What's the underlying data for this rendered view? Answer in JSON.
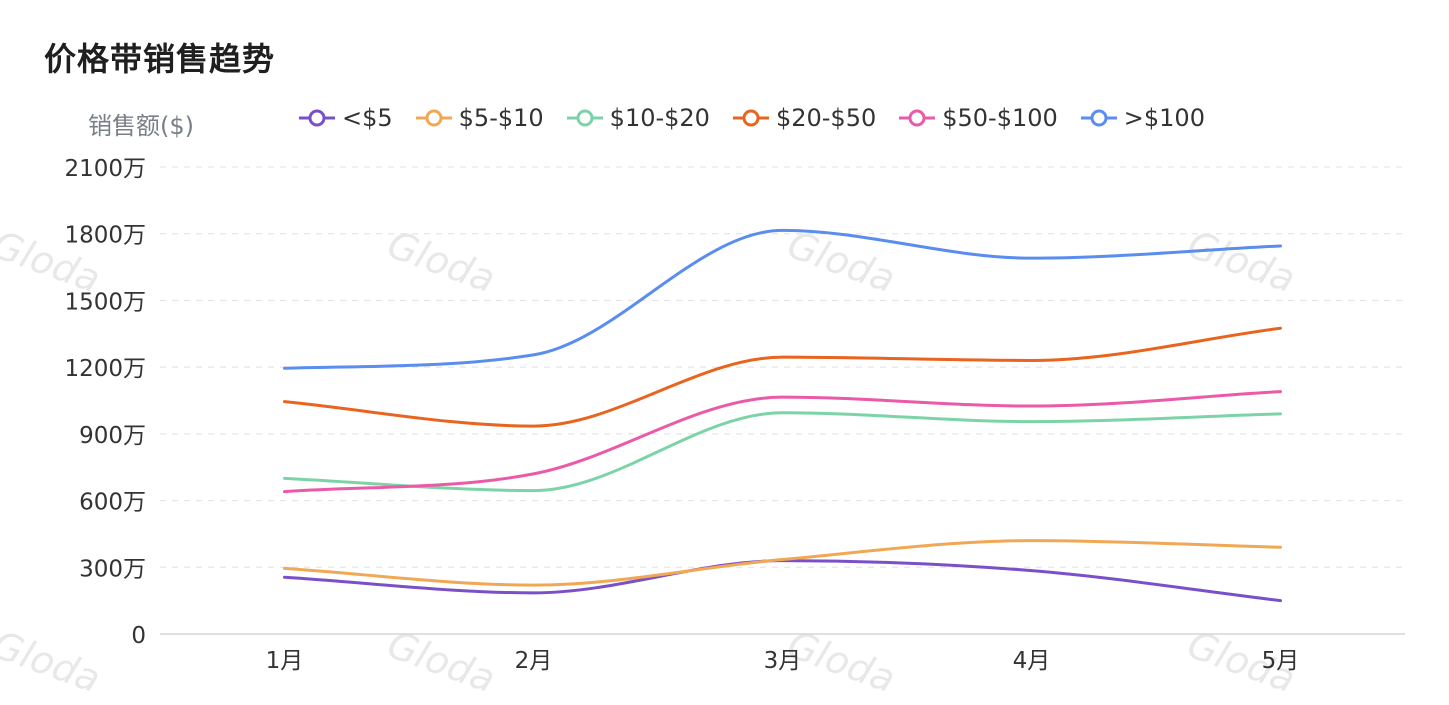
{
  "chart_data": {
    "type": "line",
    "title": "价格带销售趋势",
    "ylabel": "销售额($)",
    "xlabel": "",
    "categories": [
      "1月",
      "2月",
      "3月",
      "4月",
      "5月"
    ],
    "y_ticks": [
      "0",
      "300万",
      "600万",
      "900万",
      "1200万",
      "1500万",
      "1800万",
      "2100万"
    ],
    "ylim": [
      0,
      2100
    ],
    "unit": "万",
    "smooth": true,
    "grid": "horizontal-dashed",
    "legend_position": "top",
    "watermark": "Gloda",
    "series": [
      {
        "name": "<$5",
        "color": "#7a50c9",
        "values": [
          255,
          185,
          330,
          285,
          150
        ]
      },
      {
        "name": "$5-$10",
        "color": "#f0a855",
        "values": [
          295,
          220,
          335,
          420,
          390
        ]
      },
      {
        "name": "$10-$20",
        "color": "#7dd3a8",
        "values": [
          700,
          645,
          995,
          955,
          990
        ]
      },
      {
        "name": "$20-$50",
        "color": "#e8641f",
        "values": [
          1045,
          935,
          1245,
          1230,
          1375
        ]
      },
      {
        "name": "$50-$100",
        "color": "#ea5aa8",
        "values": [
          640,
          720,
          1065,
          1025,
          1090
        ]
      },
      {
        "name": ">$100",
        "color": "#5b8def",
        "values": [
          1195,
          1255,
          1815,
          1690,
          1745
        ]
      }
    ]
  }
}
